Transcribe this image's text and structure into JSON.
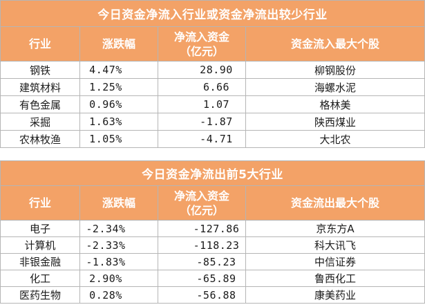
{
  "table1": {
    "title": "今日资金净流入行业或资金净流出较少行业",
    "headers": [
      "行业",
      "涨跌幅",
      "净流入资金\n（亿元）",
      "资金流入最大个股"
    ],
    "rows": [
      {
        "industry": "钢铁",
        "change": "4.47%",
        "net_flow": "28.90",
        "top_stock": "柳钢股份"
      },
      {
        "industry": "建筑材料",
        "change": "1.25%",
        "net_flow": "6.66",
        "top_stock": "海螺水泥"
      },
      {
        "industry": "有色金属",
        "change": "0.96%",
        "net_flow": "1.07",
        "top_stock": "格林美"
      },
      {
        "industry": "采掘",
        "change": "1.63%",
        "net_flow": "-1.87",
        "top_stock": "陕西煤业"
      },
      {
        "industry": "农林牧渔",
        "change": "1.05%",
        "net_flow": "-4.71",
        "top_stock": "大北农"
      }
    ]
  },
  "table2": {
    "title": "今日资金净流出前5大行业",
    "headers": [
      "行业",
      "涨跌幅",
      "净流入资金\n（亿元）",
      "资金流出最大个股"
    ],
    "rows": [
      {
        "industry": "电子",
        "change": "-2.34%",
        "net_flow": "-127.86",
        "top_stock": "京东方A"
      },
      {
        "industry": "计算机",
        "change": "-2.33%",
        "net_flow": "-118.23",
        "top_stock": "科大讯飞"
      },
      {
        "industry": "非银金融",
        "change": "-1.83%",
        "net_flow": "-85.23",
        "top_stock": "中信证券"
      },
      {
        "industry": "化工",
        "change": "2.90%",
        "net_flow": "-65.89",
        "top_stock": "鲁西化工"
      },
      {
        "industry": "医药生物",
        "change": "0.28%",
        "net_flow": "-56.88",
        "top_stock": "康美药业"
      }
    ]
  },
  "colors": {
    "header_bg": "#f3a267",
    "header_text": "#ffffff",
    "border": "#b5b5b5"
  }
}
